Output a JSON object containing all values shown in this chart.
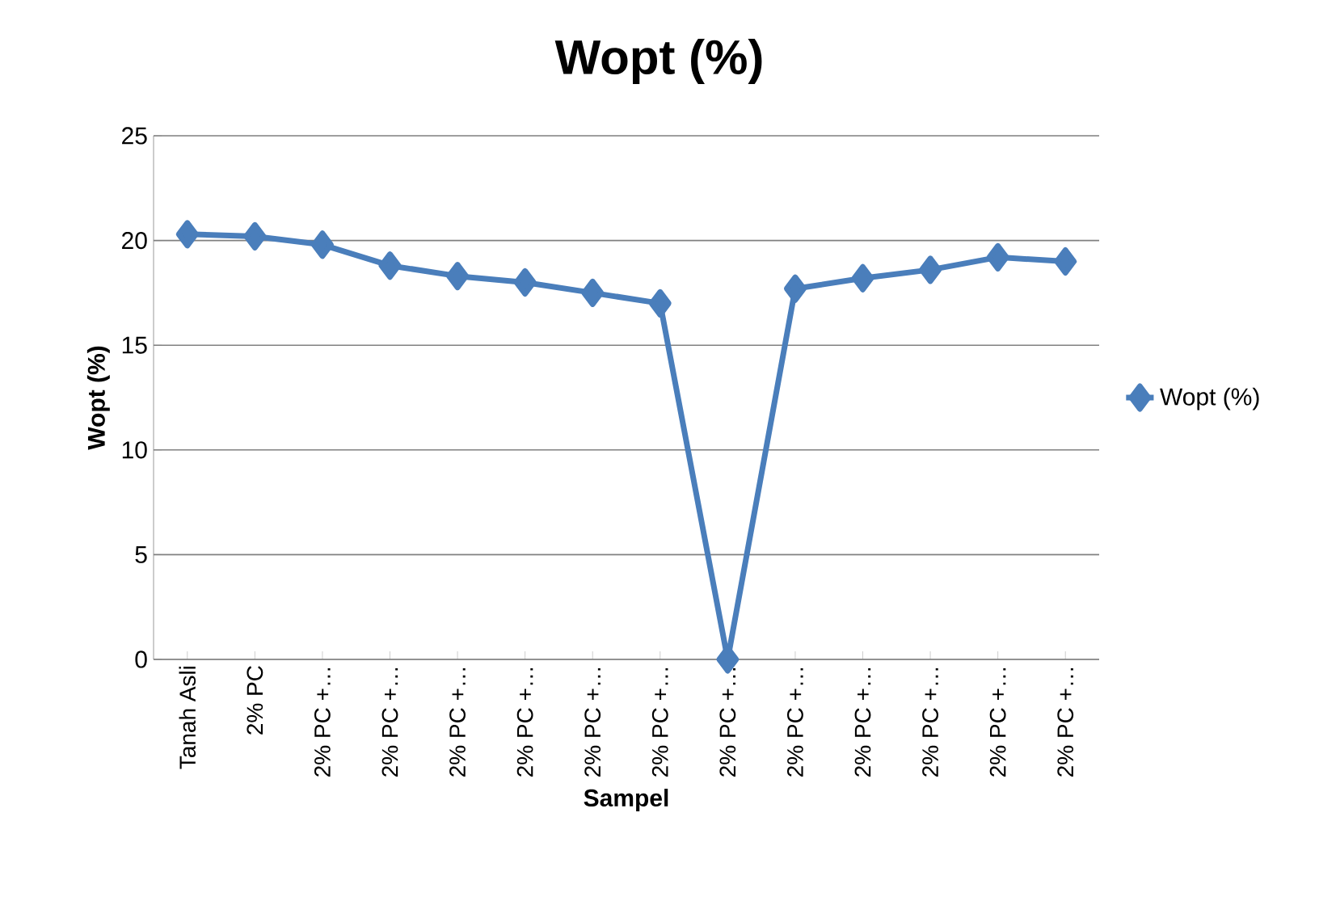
{
  "chart_data": {
    "type": "line",
    "title": "Wopt (%)",
    "xlabel": "Sampel",
    "ylabel": "Wopt (%)",
    "categories": [
      "Tanah Asli",
      "2% PC",
      "2% PC +…",
      "2% PC +…",
      "2% PC +…",
      "2% PC +…",
      "2% PC +…",
      "2% PC +…",
      "2% PC +…",
      "2% PC +…",
      "2% PC +…",
      "2% PC +…",
      "2% PC +…",
      "2% PC +…"
    ],
    "series": [
      {
        "name": "Wopt (%)",
        "color": "#4a7ebb",
        "values": [
          20.3,
          20.2,
          19.8,
          18.8,
          18.3,
          18.0,
          17.5,
          17.0,
          0,
          17.7,
          18.2,
          18.6,
          19.2,
          19.0
        ]
      }
    ],
    "ylim": [
      0,
      25
    ],
    "yticks": [
      0,
      5,
      10,
      15,
      20,
      25
    ],
    "grid": "y",
    "legend": "right",
    "marker": "diamond",
    "line_style": "solid"
  }
}
